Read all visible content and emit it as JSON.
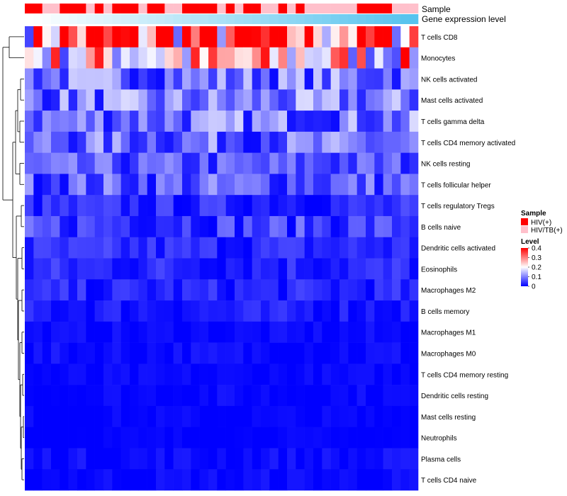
{
  "chart_data": {
    "type": "heatmap",
    "title": "",
    "column_annotations": [
      {
        "name": "Sample",
        "values": [
          "HIV(+)",
          "HIV(+)",
          "HIV/TB(+)",
          "HIV/TB(+)",
          "HIV(+)",
          "HIV(+)",
          "HIV(+)",
          "HIV/TB(+)",
          "HIV(+)",
          "HIV/TB(+)",
          "HIV(+)",
          "HIV(+)",
          "HIV(+)",
          "HIV/TB(+)",
          "HIV(+)",
          "HIV(+)",
          "HIV/TB(+)",
          "HIV/TB(+)",
          "HIV(+)",
          "HIV(+)",
          "HIV(+)",
          "HIV(+)",
          "HIV/TB(+)",
          "HIV(+)",
          "HIV/TB(+)",
          "HIV(+)",
          "HIV(+)",
          "HIV/TB(+)",
          "HIV/TB(+)",
          "HIV(+)",
          "HIV/TB(+)",
          "HIV(+)",
          "HIV/TB(+)",
          "HIV/TB(+)",
          "HIV/TB(+)",
          "HIV/TB(+)",
          "HIV/TB(+)",
          "HIV/TB(+)",
          "HIV(+)",
          "HIV(+)",
          "HIV(+)",
          "HIV(+)",
          "HIV/TB(+)",
          "HIV/TB(+)",
          "HIV/TB(+)"
        ]
      },
      {
        "name": "Gene expression level",
        "values": [
          0.0,
          0.02,
          0.04,
          0.07,
          0.09,
          0.11,
          0.14,
          0.16,
          0.18,
          0.2,
          0.23,
          0.25,
          0.27,
          0.3,
          0.32,
          0.34,
          0.36,
          0.39,
          0.41,
          0.43,
          0.45,
          0.48,
          0.5,
          0.52,
          0.55,
          0.57,
          0.59,
          0.61,
          0.64,
          0.66,
          0.68,
          0.7,
          0.73,
          0.75,
          0.77,
          0.8,
          0.82,
          0.84,
          0.86,
          0.89,
          0.91,
          0.93,
          0.95,
          0.98,
          1.0
        ]
      }
    ],
    "rows": [
      "T cells CD8",
      "Monocytes",
      "NK cells activated",
      "Mast cells activated",
      "T cells gamma delta",
      "T cells CD4 memory activated",
      "NK cells resting",
      "T cells follicular helper",
      "T cells regulatory  Tregs",
      "B cells naive",
      "Dendritic cells activated",
      "Eosinophils",
      "Macrophages M2",
      "B cells memory",
      "Macrophages M1",
      "Macrophages M0",
      "T cells CD4 memory resting",
      "Dendritic cells resting",
      "Mast cells resting",
      "Neutrophils",
      "Plasma cells",
      "T cells CD4 naive"
    ],
    "n_columns": 45,
    "row_means": [
      0.32,
      0.22,
      0.09,
      0.09,
      0.09,
      0.08,
      0.06,
      0.07,
      0.03,
      0.05,
      0.03,
      0.03,
      0.025,
      0.02,
      0.005,
      0.008,
      0.003,
      0.005,
      0.002,
      0.0,
      0.008,
      0.006
    ],
    "legend": {
      "title": "Level",
      "ticks": [
        0.4,
        0.3,
        0.2,
        0.1,
        0
      ],
      "range": [
        0,
        0.4
      ],
      "colors": {
        "low": "#0000FF",
        "mid": "#FFFFFF",
        "high": "#FF0000"
      },
      "placement": "right"
    },
    "sample_legend": {
      "title": "Sample",
      "items": [
        {
          "label": "HIV(+)",
          "color": "#FF0000"
        },
        {
          "label": "HIV/TB(+)",
          "color": "#FFC0CB"
        }
      ]
    },
    "expression_colors": {
      "low": "#FFFFFF",
      "high": "#56C3EE"
    },
    "row_dendrogram": true
  }
}
